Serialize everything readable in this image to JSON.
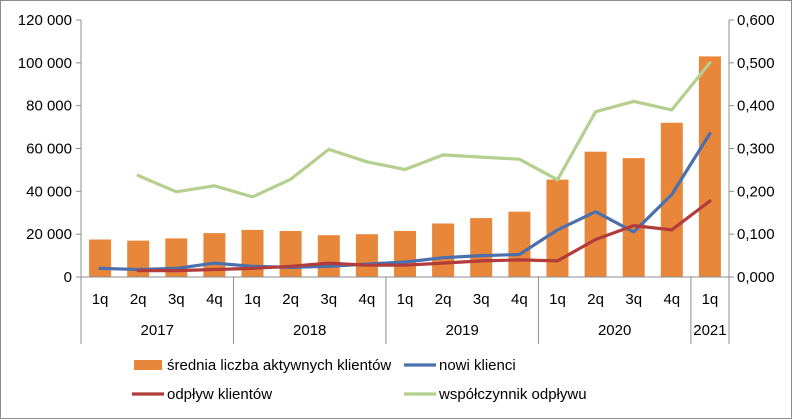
{
  "chart_data": {
    "type": "bar+line",
    "title": "",
    "categories": [
      "1q",
      "2q",
      "3q",
      "4q",
      "1q",
      "2q",
      "3q",
      "4q",
      "1q",
      "2q",
      "3q",
      "4q",
      "1q",
      "2q",
      "3q",
      "4q",
      "1q"
    ],
    "years": [
      {
        "label": "2017",
        "count": 4
      },
      {
        "label": "2018",
        "count": 4
      },
      {
        "label": "2019",
        "count": 4
      },
      {
        "label": "2020",
        "count": 4
      },
      {
        "label": "2021",
        "count": 1
      }
    ],
    "y_left": {
      "min": 0,
      "max": 120000,
      "ticks": [
        "0",
        "20 000",
        "40 000",
        "60 000",
        "80 000",
        "100 000",
        "120 000"
      ]
    },
    "y_right": {
      "min": 0,
      "max": 0.6,
      "ticks": [
        "0,000",
        "0,100",
        "0,200",
        "0,300",
        "0,400",
        "0,500",
        "0,600"
      ]
    },
    "grid": false,
    "legend_position": "bottom",
    "series": [
      {
        "name": "średnia liczba aktywnych klientów",
        "type": "bar",
        "axis": "left",
        "color": "#e8863a",
        "values": [
          17500,
          17000,
          18000,
          20500,
          22000,
          21500,
          19500,
          20000,
          21500,
          25000,
          27500,
          30500,
          45500,
          58500,
          55500,
          72000,
          103000
        ]
      },
      {
        "name": "nowi klienci",
        "type": "line",
        "axis": "left",
        "color": "#4a70ae",
        "values": [
          4000,
          3500,
          4000,
          6500,
          5000,
          4500,
          5000,
          6000,
          7000,
          9000,
          10000,
          10500,
          22000,
          30500,
          21000,
          38500,
          67000
        ]
      },
      {
        "name": "odpływ klientów",
        "type": "line",
        "axis": "left",
        "color": "#b23c3a",
        "values": [
          null,
          3000,
          3000,
          3500,
          4000,
          5000,
          6500,
          5500,
          5500,
          6500,
          7500,
          8000,
          7500,
          17500,
          24000,
          22000,
          35500
        ]
      },
      {
        "name": "współczynnik odpływu",
        "type": "line",
        "axis": "right",
        "color": "#b5cf8e",
        "values": [
          null,
          0.237,
          0.199,
          0.213,
          0.187,
          0.228,
          0.298,
          0.269,
          0.251,
          0.285,
          0.28,
          0.275,
          0.227,
          0.386,
          0.41,
          0.39,
          0.5
        ]
      }
    ]
  }
}
